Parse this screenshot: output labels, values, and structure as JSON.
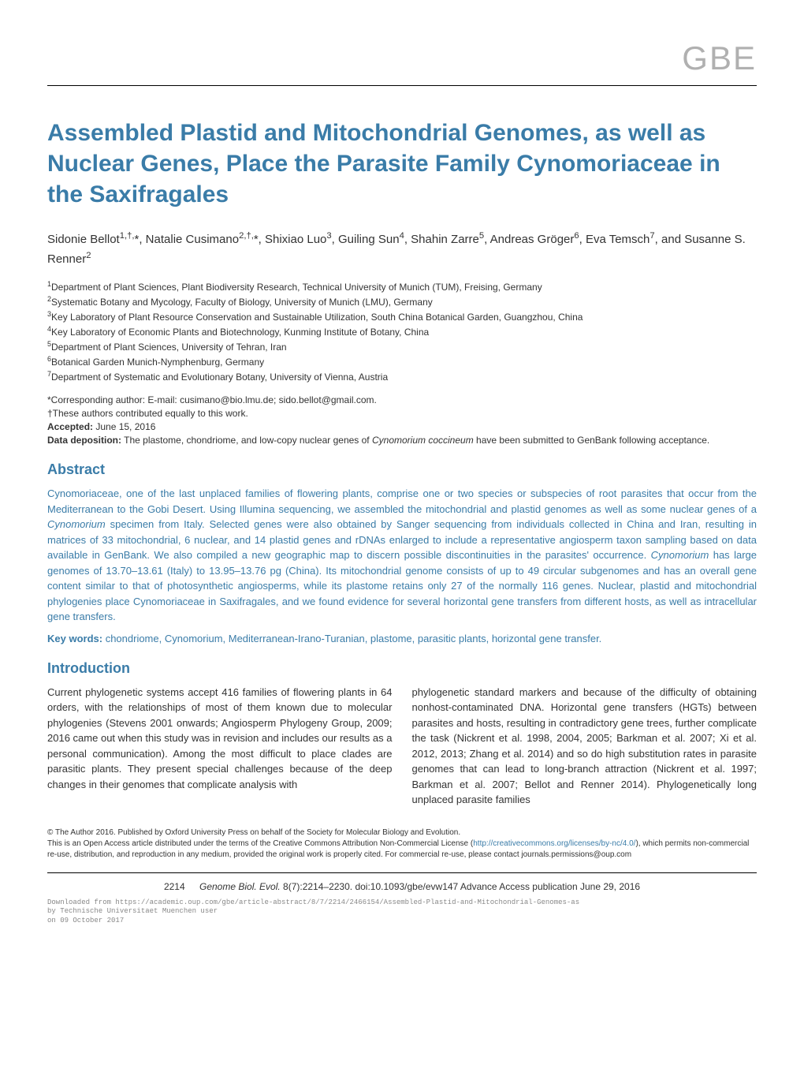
{
  "logo": "GBE",
  "title": "Assembled Plastid and Mitochondrial Genomes, as well as Nuclear Genes, Place the Parasite Family Cynomoriaceae in the Saxifragales",
  "authors_html": "Sidonie Bellot<sup>1,†,</sup>*, Natalie Cusimano<sup>2,†,</sup>*, Shixiao Luo<sup>3</sup>, Guiling Sun<sup>4</sup>, Shahin Zarre<sup>5</sup>, Andreas Gröger<sup>6</sup>, Eva Temsch<sup>7</sup>, and Susanne S. Renner<sup>2</sup>",
  "affiliations": [
    "<sup>1</sup>Department of Plant Sciences, Plant Biodiversity Research, Technical University of Munich (TUM), Freising, Germany",
    "<sup>2</sup>Systematic Botany and Mycology, Faculty of Biology, University of Munich (LMU), Germany",
    "<sup>3</sup>Key Laboratory of Plant Resource Conservation and Sustainable Utilization, South China Botanical Garden, Guangzhou, China",
    "<sup>4</sup>Key Laboratory of Economic Plants and Biotechnology, Kunming Institute of Botany, China",
    "<sup>5</sup>Department of Plant Sciences, University of Tehran, Iran",
    "<sup>6</sup>Botanical Garden Munich-Nymphenburg, Germany",
    "<sup>7</sup>Department of Systematic and Evolutionary Botany, University of Vienna, Austria"
  ],
  "meta": {
    "corresponding": "*Corresponding author: E-mail: cusimano@bio.lmu.de; sido.bellot@gmail.com.",
    "equal": "†These authors contributed equally to this work.",
    "accepted_label": "Accepted:",
    "accepted_value": " June 15, 2016",
    "deposition_label": "Data deposition:",
    "deposition_value": " The plastome, chondriome, and low-copy nuclear genes of <span class=\"italic\">Cynomorium coccineum</span> have been submitted to GenBank following acceptance."
  },
  "abstract": {
    "heading": "Abstract",
    "text": "Cynomoriaceae, one of the last unplaced families of flowering plants, comprise one or two species or subspecies of root parasites that occur from the Mediterranean to the Gobi Desert. Using Illumina sequencing, we assembled the mitochondrial and plastid genomes as well as some nuclear genes of a <span class=\"italic\">Cynomorium</span> specimen from Italy. Selected genes were also obtained by Sanger sequencing from individuals collected in China and Iran, resulting in matrices of 33 mitochondrial, 6 nuclear, and 14 plastid genes and rDNAs enlarged to include a representative angiosperm taxon sampling based on data available in GenBank. We also compiled a new geographic map to discern possible discontinuities in the parasites' occurrence. <span class=\"italic\">Cynomorium</span> has large genomes of 13.70–13.61 (Italy) to 13.95–13.76 pg (China). Its mitochondrial genome consists of up to 49 circular subgenomes and has an overall gene content similar to that of photosynthetic angiosperms, while its plastome retains only 27 of the normally 116 genes. Nuclear, plastid and mitochondrial phylogenies place Cynomoriaceae in Saxifragales, and we found evidence for several horizontal gene transfers from different hosts, as well as intracellular gene transfers."
  },
  "keywords": {
    "label": "Key words:",
    "text": " chondriome, Cynomorium, Mediterranean-Irano-Turanian, plastome, parasitic plants, horizontal gene transfer."
  },
  "introduction": {
    "heading": "Introduction",
    "col1": "Current phylogenetic systems accept 416 families of flowering plants in 64 orders, with the relationships of most of them known due to molecular phylogenies (Stevens 2001 onwards; Angiosperm Phylogeny Group, 2009; 2016 came out when this study was in revision and includes our results as a personal communication). Among the most difficult to place clades are parasitic plants. They present special challenges because of the deep changes in their genomes that complicate analysis with",
    "col2": "phylogenetic standard markers and because of the difficulty of obtaining nonhost-contaminated DNA. Horizontal gene transfers (HGTs) between parasites and hosts, resulting in contradictory gene trees, further complicate the task (Nickrent et al. 1998, 2004, 2005; Barkman et al. 2007; Xi et al. 2012, 2013; Zhang et al. 2014) and so do high substitution rates in parasite genomes that can lead to long-branch attraction (Nickrent et al. 1997; Barkman et al. 2007; Bellot and Renner 2014). Phylogenetically long unplaced parasite families"
  },
  "license": {
    "line1": "© The Author 2016. Published by Oxford University Press on behalf of the Society for Molecular Biology and Evolution.",
    "line2": "This is an Open Access article distributed under the terms of the Creative Commons Attribution Non-Commercial License (<span class=\"license-link\">http://creativecommons.org/licenses/by-nc/4.0/</span>), which permits non-commercial re-use, distribution, and reproduction in any medium, provided the original work is properly cited. For commercial re-use, please contact journals.permissions@oup.com"
  },
  "footer": {
    "page_num": "2214",
    "citation": "<span class=\"footer-italic\">Genome Biol. Evol.</span> 8(7):2214–2230.   doi:10.1093/gbe/evw147   Advance Access publication June 29, 2016"
  },
  "download": {
    "line1": "Downloaded from https://academic.oup.com/gbe/article-abstract/8/7/2214/2466154/Assembled-Plastid-and-Mitochondrial-Genomes-as",
    "line2": "by Technische Universitaet Muenchen user",
    "line3": "on 09 October 2017"
  }
}
